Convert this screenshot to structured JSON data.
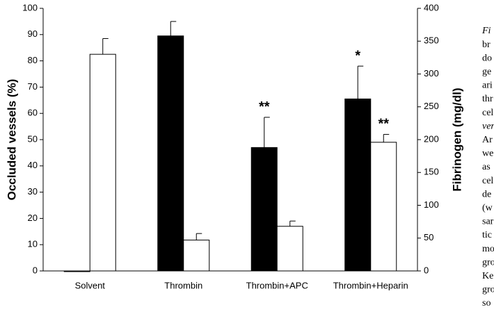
{
  "chart_data": {
    "type": "bar",
    "categories": [
      "Solvent",
      "Thrombin",
      "Thrombin+APC",
      "Thrombin+Heparin"
    ],
    "ylabel": "Occluded vessels (%)",
    "y2label": "Fibrinogen (mg/dl)",
    "ylim": [
      0,
      100
    ],
    "yticks": [
      0,
      10,
      20,
      30,
      40,
      50,
      60,
      70,
      80,
      90,
      100
    ],
    "y2lim": [
      0,
      400
    ],
    "y2ticks": [
      0,
      50,
      100,
      150,
      200,
      250,
      300,
      350,
      400
    ],
    "series": [
      {
        "color": "#000000",
        "values": [
          0,
          89.5,
          47,
          65.5
        ],
        "errors": [
          null,
          5.5,
          11.5,
          12.5
        ],
        "significance": [
          null,
          null,
          "**",
          "*"
        ]
      },
      {
        "color": "#ffffff",
        "axis": "y2",
        "values": [
          330,
          47,
          68,
          196
        ],
        "errors": [
          24,
          10,
          8,
          12
        ],
        "significance": [
          null,
          null,
          null,
          "**"
        ]
      }
    ]
  },
  "caption_fragments": [
    "Fi",
    "br",
    "do",
    "ge",
    "ari",
    "thr",
    "cel",
    "ver",
    "Ar",
    "we",
    "as",
    "cel",
    "de",
    "(w",
    "sar",
    "tic",
    "mo",
    "gro",
    "Ke",
    "gro",
    "so"
  ]
}
